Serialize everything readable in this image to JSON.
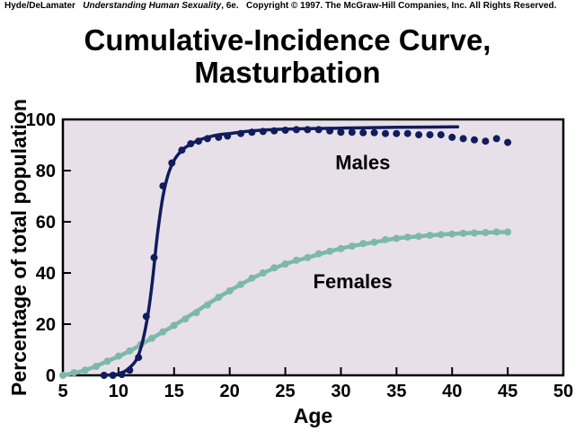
{
  "header": {
    "authors": "Hyde/DeLamater",
    "book": "Understanding Human Sexuality",
    "edition": ", 6e.",
    "copyright": "Copyright © 1997. The McGraw-Hill Companies, Inc. All Rights Reserved."
  },
  "chart_data": {
    "type": "line",
    "title_line1": "Cumulative-Incidence Curve,",
    "title_line2": "Masturbation",
    "xlabel": "Age",
    "ylabel": "Percentage of total population",
    "xlim": [
      5,
      50
    ],
    "ylim": [
      0,
      100
    ],
    "xticks": [
      5,
      10,
      15,
      20,
      25,
      30,
      35,
      40,
      45,
      50
    ],
    "yticks": [
      0,
      20,
      40,
      60,
      80,
      100
    ],
    "plot_background": "#e8e0e8",
    "series": [
      {
        "name": "Males",
        "color": "#101c5c",
        "curve": [
          [
            8.5,
            0
          ],
          [
            10,
            0.5
          ],
          [
            11,
            3
          ],
          [
            11.8,
            8
          ],
          [
            12.5,
            20
          ],
          [
            13,
            35
          ],
          [
            13.5,
            55
          ],
          [
            14,
            70
          ],
          [
            14.5,
            79
          ],
          [
            15,
            84
          ],
          [
            15.5,
            87
          ],
          [
            16,
            89
          ],
          [
            17,
            91.5
          ],
          [
            18,
            93
          ],
          [
            19,
            94
          ],
          [
            20,
            94.5
          ],
          [
            22,
            95.5
          ],
          [
            25,
            96.2
          ],
          [
            30,
            96.6
          ],
          [
            35,
            96.9
          ],
          [
            40.5,
            97.1
          ]
        ],
        "points": [
          [
            8.7,
            0
          ],
          [
            9.5,
            0
          ],
          [
            10.3,
            0.3
          ],
          [
            11,
            2
          ],
          [
            11.8,
            7
          ],
          [
            12.5,
            23
          ],
          [
            13.2,
            46
          ],
          [
            14,
            74
          ],
          [
            14.8,
            83
          ],
          [
            15.7,
            88
          ],
          [
            16.5,
            90.5
          ],
          [
            17.2,
            91.5
          ],
          [
            18,
            92.5
          ],
          [
            19,
            93
          ],
          [
            19.8,
            93.5
          ],
          [
            21,
            94.5
          ],
          [
            22,
            95
          ],
          [
            23,
            95.3
          ],
          [
            24,
            95.5
          ],
          [
            25,
            95.8
          ],
          [
            26,
            96
          ],
          [
            27,
            96
          ],
          [
            28,
            96
          ],
          [
            29,
            95.5
          ],
          [
            30,
            95
          ],
          [
            31,
            95
          ],
          [
            32,
            94.8
          ],
          [
            33,
            94.8
          ],
          [
            34,
            94.5
          ],
          [
            35,
            94.5
          ],
          [
            36,
            94.5
          ],
          [
            37,
            94
          ],
          [
            38,
            94
          ],
          [
            39,
            94
          ],
          [
            40,
            93
          ],
          [
            41,
            92.5
          ],
          [
            42,
            92
          ],
          [
            43,
            91.5
          ],
          [
            44,
            92.5
          ],
          [
            45,
            91
          ]
        ]
      },
      {
        "name": "Females",
        "color": "#7cb8ad",
        "curve": [
          [
            5,
            0
          ],
          [
            7,
            2
          ],
          [
            9,
            5.5
          ],
          [
            11,
            9.5
          ],
          [
            13,
            14.5
          ],
          [
            15,
            19.5
          ],
          [
            17,
            25
          ],
          [
            19,
            30.5
          ],
          [
            21,
            35.5
          ],
          [
            23,
            40
          ],
          [
            25,
            43.5
          ],
          [
            27,
            46
          ],
          [
            29,
            48.5
          ],
          [
            31,
            50.5
          ],
          [
            33,
            52
          ],
          [
            35,
            53.5
          ],
          [
            37,
            54.3
          ],
          [
            39,
            55
          ],
          [
            41,
            55.5
          ],
          [
            43,
            55.8
          ],
          [
            45,
            56
          ]
        ],
        "points": [
          [
            5,
            0
          ],
          [
            6,
            1
          ],
          [
            7,
            2
          ],
          [
            8,
            3.5
          ],
          [
            9,
            5.5
          ],
          [
            10,
            7.5
          ],
          [
            11,
            9.5
          ],
          [
            12,
            12
          ],
          [
            13,
            14.5
          ],
          [
            14,
            17
          ],
          [
            15,
            19.5
          ],
          [
            16,
            22
          ],
          [
            17,
            24.5
          ],
          [
            18,
            27.5
          ],
          [
            19,
            30.5
          ],
          [
            20,
            33
          ],
          [
            21,
            35.5
          ],
          [
            22,
            38
          ],
          [
            23,
            40
          ],
          [
            24,
            42
          ],
          [
            25,
            43.5
          ],
          [
            26,
            45
          ],
          [
            27,
            46
          ],
          [
            28,
            47.5
          ],
          [
            29,
            48.5
          ],
          [
            30,
            49.5
          ],
          [
            31,
            50.5
          ],
          [
            32,
            51.5
          ],
          [
            33,
            52
          ],
          [
            34,
            53
          ],
          [
            35,
            53.5
          ],
          [
            36,
            54
          ],
          [
            37,
            54.3
          ],
          [
            38,
            54.7
          ],
          [
            39,
            55
          ],
          [
            40,
            55.2
          ],
          [
            41,
            55.5
          ],
          [
            42,
            55.6
          ],
          [
            43,
            55.8
          ],
          [
            44,
            56
          ],
          [
            45,
            56
          ]
        ]
      }
    ]
  }
}
